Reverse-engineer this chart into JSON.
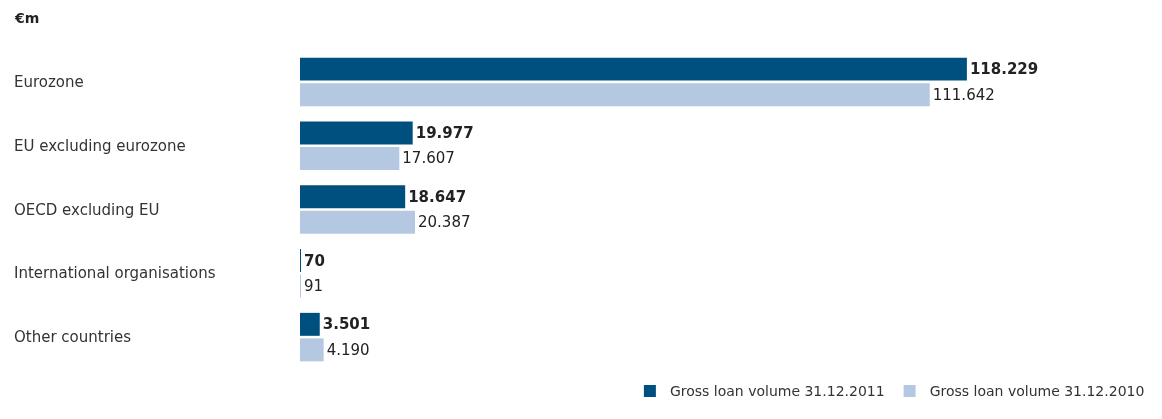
{
  "chart_data": {
    "type": "bar",
    "orientation": "horizontal",
    "subtitle": "€m",
    "categories": [
      "Eurozone",
      "EU excluding eurozone",
      "OECD excluding EU",
      "International organisations",
      "Other countries"
    ],
    "series": [
      {
        "name": "Gross loan volume 31.12.2011",
        "color": "#00507f",
        "values": [
          118229,
          19977,
          18647,
          70,
          3501
        ],
        "value_labels": [
          "118.229",
          "19.977",
          "18.647",
          "70",
          "3.501"
        ]
      },
      {
        "name": "Gross loan volume 31.12.2010",
        "color": "#b4c8e1",
        "values": [
          111642,
          17607,
          20387,
          91,
          4190
        ],
        "value_labels": [
          "111.642",
          "17.607",
          "20.387",
          "91",
          "4.190"
        ]
      }
    ],
    "legend": "bottom right",
    "tick_labels": false
  }
}
